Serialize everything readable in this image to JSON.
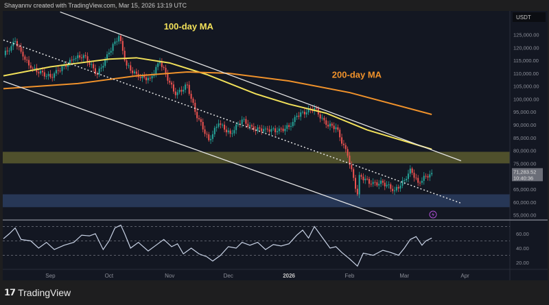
{
  "header": {
    "credit": "Shayannv created with TradingView.com, Mar 15, 2026 13:19 UTC"
  },
  "footer": {
    "brand": "TradingView",
    "logo_text": "TV"
  },
  "colors": {
    "up": "#26a69a",
    "down": "#ef5350",
    "ma100": "#f2e15a",
    "ma200": "#f0922b",
    "rsi": "#c9d3e6",
    "supply_zone": "#5b5a2e",
    "demand_zone": "#2c3d5f",
    "background": "#131722"
  },
  "chart_data": [
    {
      "type": "candlestick",
      "currency_label": "USDT",
      "ylim": [
        53000,
        133000
      ],
      "y_ticks": [
        "125,000.00",
        "120,000.00",
        "115,000.00",
        "110,000.00",
        "105,000.00",
        "100,000.00",
        "95,000.00",
        "90,000.00",
        "85,000.00",
        "80,000.00",
        "75,000.00",
        "65,000.00",
        "60,000.00",
        "55,000.00"
      ],
      "x_ticks": [
        {
          "label": "Sep",
          "date": "2025-09-01"
        },
        {
          "label": "Oct",
          "date": "2025-10-01"
        },
        {
          "label": "Nov",
          "date": "2025-11-01"
        },
        {
          "label": "Dec",
          "date": "2025-12-01"
        },
        {
          "label": "2026",
          "date": "2026-01-01",
          "bold": true
        },
        {
          "label": "Feb",
          "date": "2026-02-01"
        },
        {
          "label": "Mar",
          "date": "2026-03-01"
        },
        {
          "label": "Apr",
          "date": "2026-04-01"
        }
      ],
      "closes": [
        [
          "2025-08-08",
          117000
        ],
        [
          "2025-08-12",
          120500
        ],
        [
          "2025-08-14",
          122500
        ],
        [
          "2025-08-18",
          116500
        ],
        [
          "2025-08-22",
          112000
        ],
        [
          "2025-09-01",
          108500
        ],
        [
          "2025-09-05",
          111000
        ],
        [
          "2025-09-13",
          115500
        ],
        [
          "2025-09-18",
          117000
        ],
        [
          "2025-09-25",
          109500
        ],
        [
          "2025-10-01",
          118000
        ],
        [
          "2025-10-06",
          124500
        ],
        [
          "2025-10-10",
          113000
        ],
        [
          "2025-10-16",
          108500
        ],
        [
          "2025-10-22",
          108000
        ],
        [
          "2025-10-27",
          114500
        ],
        [
          "2025-11-04",
          101500
        ],
        [
          "2025-11-10",
          105500
        ],
        [
          "2025-11-14",
          95000
        ],
        [
          "2025-11-21",
          84000
        ],
        [
          "2025-11-26",
          90500
        ],
        [
          "2025-12-02",
          86500
        ],
        [
          "2025-12-08",
          92000
        ],
        [
          "2025-12-14",
          88000
        ],
        [
          "2025-12-20",
          88500
        ],
        [
          "2025-12-26",
          87500
        ],
        [
          "2026-01-02",
          89500
        ],
        [
          "2026-01-05",
          93500
        ],
        [
          "2026-01-14",
          96500
        ],
        [
          "2026-01-20",
          90000
        ],
        [
          "2026-01-25",
          89000
        ],
        [
          "2026-01-31",
          78000
        ],
        [
          "2026-02-05",
          63000
        ],
        [
          "2026-02-06",
          70500
        ],
        [
          "2026-02-12",
          67000
        ],
        [
          "2026-02-18",
          67500
        ],
        [
          "2026-02-24",
          64500
        ],
        [
          "2026-03-02",
          69000
        ],
        [
          "2026-03-04",
          73000
        ],
        [
          "2026-03-08",
          67500
        ],
        [
          "2026-03-12",
          70000
        ],
        [
          "2026-03-15",
          71283.52
        ]
      ],
      "last_price": {
        "price": "71,283.52",
        "countdown": "10:40:36",
        "value": 71283.52
      },
      "series": [
        {
          "name": "100-day MA",
          "points": [
            [
              "2025-08-08",
              109000
            ],
            [
              "2025-09-01",
              112500
            ],
            [
              "2025-10-01",
              115500
            ],
            [
              "2025-10-15",
              116000
            ],
            [
              "2025-11-01",
              114000
            ],
            [
              "2025-11-20",
              109500
            ],
            [
              "2025-12-15",
              102000
            ],
            [
              "2026-01-01",
              98000
            ],
            [
              "2026-01-20",
              94500
            ],
            [
              "2026-02-10",
              88000
            ],
            [
              "2026-03-15",
              80500
            ]
          ]
        },
        {
          "name": "200-day MA",
          "points": [
            [
              "2025-08-08",
              104000
            ],
            [
              "2025-09-15",
              106000
            ],
            [
              "2025-10-15",
              109000
            ],
            [
              "2025-11-10",
              110500
            ],
            [
              "2025-12-01",
              110000
            ],
            [
              "2026-01-01",
              107000
            ],
            [
              "2026-02-01",
              102500
            ],
            [
              "2026-03-15",
              94000
            ]
          ]
        }
      ],
      "annotations": [
        {
          "text": "100-day MA",
          "date": "2025-10-29",
          "price": 127000,
          "color": "#f2e15a"
        },
        {
          "text": "200-day MA",
          "date": "2026-01-23",
          "price": 108300,
          "color": "#f0922b"
        }
      ],
      "trendlines": [
        {
          "kind": "solid",
          "from": [
            "2025-09-06",
            133800
          ],
          "to": [
            "2026-03-30",
            76000
          ]
        },
        {
          "kind": "solid",
          "from": [
            "2025-08-08",
            106900
          ],
          "to": [
            "2026-02-23",
            53150
          ]
        },
        {
          "kind": "dotted",
          "from": [
            "2025-08-08",
            122900
          ],
          "to": [
            "2026-03-30",
            59550
          ]
        }
      ],
      "zones": [
        {
          "name": "supply",
          "from": 75000,
          "to": 79500
        },
        {
          "name": "demand",
          "from": 58000,
          "to": 63000
        }
      ]
    },
    {
      "type": "line",
      "ylim": [
        10,
        78
      ],
      "y_ticks": [
        "60.00",
        "40.00",
        "20.00"
      ],
      "levels": [
        70,
        50,
        30
      ],
      "values": [
        [
          "2025-08-08",
          53
        ],
        [
          "2025-08-11",
          60
        ],
        [
          "2025-08-14",
          68
        ],
        [
          "2025-08-17",
          52
        ],
        [
          "2025-08-22",
          50
        ],
        [
          "2025-08-26",
          40
        ],
        [
          "2025-08-30",
          48
        ],
        [
          "2025-09-03",
          38
        ],
        [
          "2025-09-08",
          44
        ],
        [
          "2025-09-13",
          48
        ],
        [
          "2025-09-17",
          58
        ],
        [
          "2025-09-21",
          57
        ],
        [
          "2025-09-24",
          60
        ],
        [
          "2025-09-28",
          38
        ],
        [
          "2025-10-01",
          50
        ],
        [
          "2025-10-04",
          68
        ],
        [
          "2025-10-07",
          72
        ],
        [
          "2025-10-09",
          60
        ],
        [
          "2025-10-12",
          40
        ],
        [
          "2025-10-16",
          48
        ],
        [
          "2025-10-21",
          36
        ],
        [
          "2025-10-25",
          44
        ],
        [
          "2025-10-29",
          52
        ],
        [
          "2025-11-02",
          42
        ],
        [
          "2025-11-05",
          46
        ],
        [
          "2025-11-08",
          32
        ],
        [
          "2025-11-12",
          40
        ],
        [
          "2025-11-16",
          32
        ],
        [
          "2025-11-20",
          28
        ],
        [
          "2025-11-23",
          22
        ],
        [
          "2025-11-27",
          30
        ],
        [
          "2025-12-01",
          42
        ],
        [
          "2025-12-05",
          40
        ],
        [
          "2025-12-08",
          48
        ],
        [
          "2025-12-12",
          44
        ],
        [
          "2025-12-16",
          48
        ],
        [
          "2025-12-20",
          38
        ],
        [
          "2025-12-24",
          45
        ],
        [
          "2025-12-28",
          43
        ],
        [
          "2026-01-01",
          46
        ],
        [
          "2026-01-05",
          58
        ],
        [
          "2026-01-08",
          65
        ],
        [
          "2026-01-11",
          54
        ],
        [
          "2026-01-14",
          70
        ],
        [
          "2026-01-18",
          55
        ],
        [
          "2026-01-22",
          40
        ],
        [
          "2026-01-25",
          42
        ],
        [
          "2026-01-28",
          34
        ],
        [
          "2026-02-01",
          25
        ],
        [
          "2026-02-05",
          15
        ],
        [
          "2026-02-08",
          33
        ],
        [
          "2026-02-13",
          30
        ],
        [
          "2026-02-18",
          37
        ],
        [
          "2026-02-22",
          34
        ],
        [
          "2026-02-26",
          30
        ],
        [
          "2026-03-01",
          40
        ],
        [
          "2026-03-04",
          52
        ],
        [
          "2026-03-07",
          56
        ],
        [
          "2026-03-10",
          44
        ],
        [
          "2026-03-12",
          50
        ],
        [
          "2026-03-15",
          54
        ]
      ]
    }
  ]
}
